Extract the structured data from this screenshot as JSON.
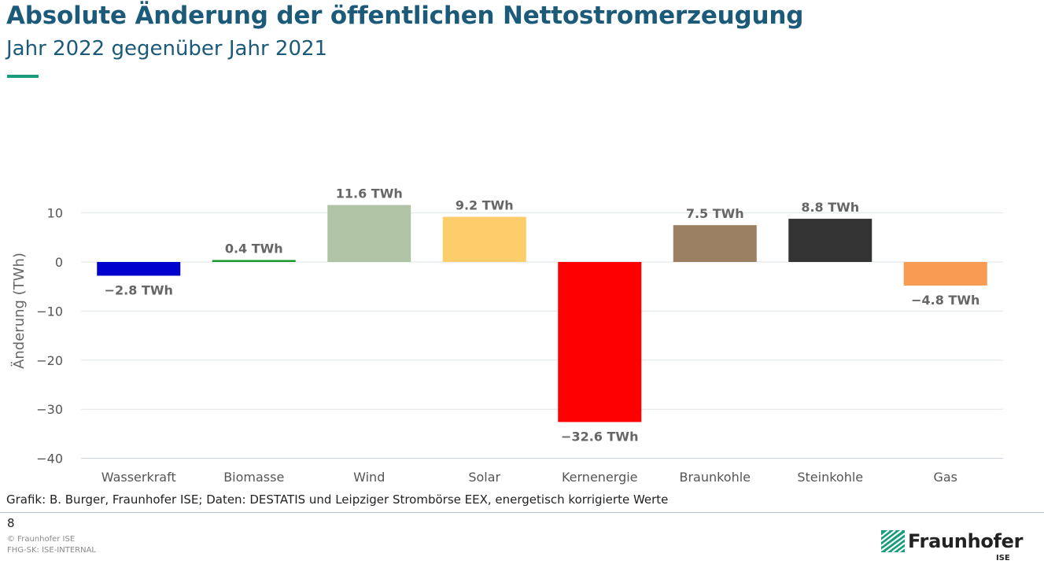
{
  "header": {
    "title": "Absolute Änderung der öffentlichen Nettostromerzeugung",
    "subtitle": "Jahr 2022 gegenüber Jahr 2021"
  },
  "chart_data": {
    "type": "bar",
    "categories": [
      "Wasserkraft",
      "Biomasse",
      "Wind",
      "Solar",
      "Kernenergie",
      "Braunkohle",
      "Steinkohle",
      "Gas"
    ],
    "values": [
      -2.8,
      0.4,
      11.6,
      9.2,
      -32.6,
      7.5,
      8.8,
      -4.8
    ],
    "data_labels": [
      "−2.8 TWh",
      "0.4 TWh",
      "11.6 TWh",
      "9.2 TWh",
      "−32.6 TWh",
      "7.5 TWh",
      "8.8 TWh",
      "−4.8 TWh"
    ],
    "colors": [
      "#0000cc",
      "#1a9a2e",
      "#afc4a5",
      "#fdcd6a",
      "#ff0000",
      "#9b7f62",
      "#333333",
      "#f99b50"
    ],
    "ylabel": "Änderung (TWh)",
    "xlabel": "",
    "ylim": [
      -40,
      12
    ],
    "yticks": [
      10,
      0,
      -10,
      -20,
      -30,
      -40
    ],
    "ytick_labels": [
      "10",
      "0",
      "−10",
      "−20",
      "−30",
      "−40"
    ],
    "grid": true
  },
  "footer": {
    "caption": "Grafik: B. Burger, Fraunhofer ISE; Daten: DESTATIS und Leipziger Strombörse EEX, energetisch korrigierte Werte",
    "page_number": "8",
    "copyright": "© Fraunhofer ISE",
    "classification": "FHG-SK: ISE-INTERNAL",
    "logo_text": "Fraunhofer",
    "logo_sub": "ISE"
  }
}
